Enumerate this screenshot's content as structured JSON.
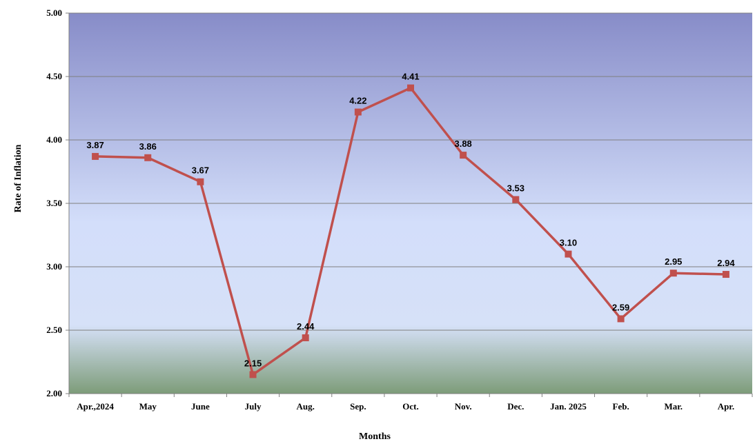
{
  "chart_data": {
    "type": "line",
    "title": "",
    "xlabel": "Months",
    "ylabel": "Rate of Inflation",
    "ylim": [
      2.0,
      5.0
    ],
    "y_ticks": [
      "2.00",
      "2.50",
      "3.00",
      "3.50",
      "4.00",
      "4.50",
      "5.00"
    ],
    "categories": [
      "Apr.,2024",
      "May",
      "June",
      "July",
      "Aug.",
      "Sep.",
      "Oct.",
      "Nov.",
      "Dec.",
      "Jan. 2025",
      "Feb.",
      "Mar.",
      "Apr."
    ],
    "series": [
      {
        "values": [
          3.87,
          3.86,
          3.67,
          2.15,
          2.44,
          4.22,
          4.41,
          3.88,
          3.53,
          3.1,
          2.59,
          2.95,
          2.94
        ],
        "data_labels": [
          "3.87",
          "3.86",
          "3.67",
          "2.15",
          "2.44",
          "4.22",
          "4.41",
          "3.88",
          "3.53",
          "3.10",
          "2.59",
          "2.95",
          "2.94"
        ],
        "color": "#c0504d",
        "marker": "square"
      }
    ],
    "grid": true,
    "legend": "none",
    "background_gradient": [
      "#8b8fca",
      "#d6e0fb",
      "#7f9e7b"
    ]
  }
}
